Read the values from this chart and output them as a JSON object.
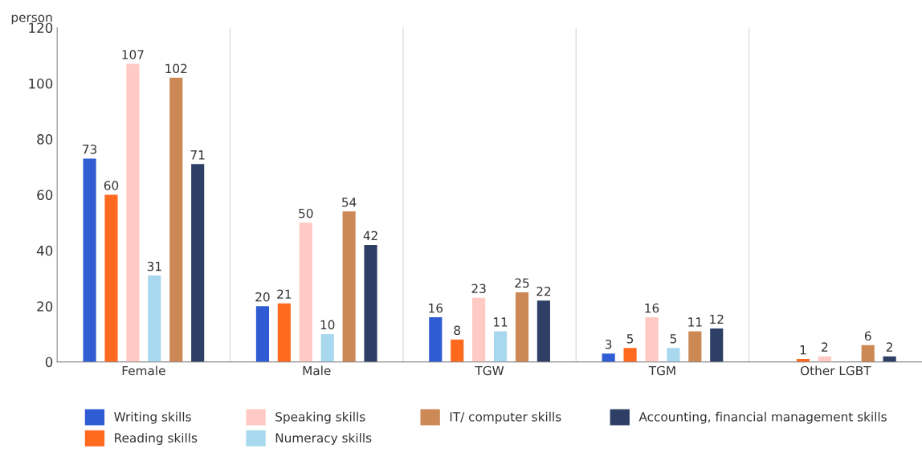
{
  "chart_data": {
    "type": "bar",
    "ylabel": "person",
    "categories": [
      "Female",
      "Male",
      "TGW",
      "TGM",
      "Other LGBT"
    ],
    "series": [
      {
        "name": "Writing skills",
        "color": "#2f5bd3",
        "values": [
          73,
          20,
          16,
          3,
          null
        ]
      },
      {
        "name": "Reading skills",
        "color": "#ff6a1f",
        "values": [
          60,
          21,
          8,
          5,
          1
        ]
      },
      {
        "name": "Speaking skills",
        "color": "#ffc9c4",
        "values": [
          107,
          50,
          23,
          16,
          2
        ]
      },
      {
        "name": "Numeracy skills",
        "color": "#a8d8ee",
        "values": [
          31,
          10,
          11,
          5,
          null
        ]
      },
      {
        "name": "IT/ computer skills",
        "color": "#cc8855",
        "values": [
          102,
          54,
          25,
          11,
          6
        ]
      },
      {
        "name": "Accounting, financial management skills",
        "color": "#2e3f66",
        "values": [
          71,
          42,
          22,
          12,
          2
        ]
      }
    ],
    "ylim": [
      0,
      120
    ],
    "yticks": [
      0,
      20,
      40,
      60,
      80,
      100,
      120
    ],
    "grid": "x",
    "legend": "bottom",
    "data_labels": true
  }
}
